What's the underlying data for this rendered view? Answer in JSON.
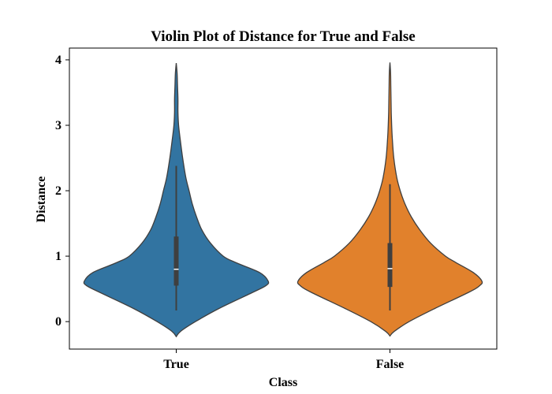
{
  "chart_data": {
    "type": "violin",
    "title": "Violin Plot of Distance for True and False",
    "xlabel": "Class",
    "ylabel": "Distance",
    "categories": [
      "True",
      "False"
    ],
    "ylim": [
      -0.42,
      4.18
    ],
    "yticks": [
      0,
      1,
      2,
      3,
      4
    ],
    "grid": false,
    "series": [
      {
        "category": "True",
        "color": "#3274a1",
        "min": 0.17,
        "q1": 0.55,
        "median": 0.8,
        "q3": 1.3,
        "max": 2.38,
        "kde": {
          "y": [
            -0.23,
            -0.15,
            0.0,
            0.2,
            0.45,
            0.55,
            0.62,
            0.75,
            0.9,
            1.0,
            1.2,
            1.4,
            1.6,
            1.8,
            2.0,
            2.2,
            2.5,
            2.8,
            3.0,
            3.2,
            3.4,
            3.6,
            3.8,
            3.95
          ],
          "half_width": [
            0.0,
            0.02,
            0.09,
            0.2,
            0.36,
            0.42,
            0.43,
            0.39,
            0.28,
            0.22,
            0.16,
            0.12,
            0.095,
            0.075,
            0.06,
            0.045,
            0.03,
            0.018,
            0.011,
            0.008,
            0.008,
            0.006,
            0.004,
            0.0
          ]
        }
      },
      {
        "category": "False",
        "color": "#e1812c",
        "min": 0.17,
        "q1": 0.53,
        "median": 0.81,
        "q3": 1.2,
        "max": 2.1,
        "kde": {
          "y": [
            -0.22,
            -0.15,
            0.0,
            0.2,
            0.45,
            0.55,
            0.62,
            0.75,
            0.9,
            1.0,
            1.2,
            1.4,
            1.6,
            1.8,
            2.0,
            2.2,
            2.5,
            2.8,
            3.0,
            3.2,
            3.4,
            3.6,
            3.8,
            3.96
          ],
          "half_width": [
            0.0,
            0.02,
            0.09,
            0.21,
            0.37,
            0.42,
            0.43,
            0.39,
            0.31,
            0.26,
            0.19,
            0.14,
            0.1,
            0.07,
            0.048,
            0.032,
            0.018,
            0.011,
            0.008,
            0.006,
            0.005,
            0.004,
            0.003,
            0.0
          ]
        }
      }
    ]
  }
}
